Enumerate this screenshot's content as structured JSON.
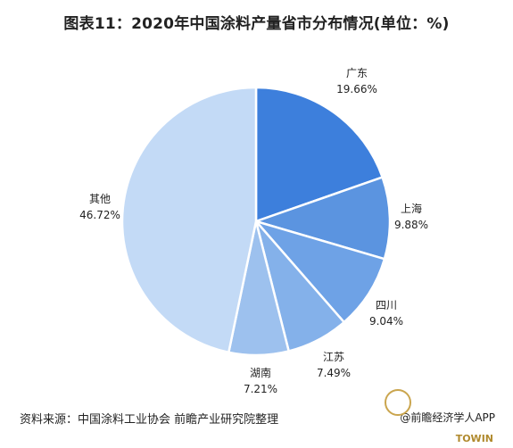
{
  "title": "图表11：2020年中国涂料产量省市分布情况(单位：%)",
  "footer": {
    "source": "资料来源：中国涂料工业协会 前瞻产业研究院整理",
    "right": "@前瞻经济学人APP",
    "brand": "TOWIN"
  },
  "chart_data": {
    "type": "pie",
    "title": "图表11：2020年中国涂料产量省市分布情况(单位：%)",
    "unit": "%",
    "start_angle_deg": 0,
    "direction": "clockwise",
    "slices": [
      {
        "label": "广东",
        "value": 19.66,
        "display": "19.66%",
        "color": "#3d7fdc"
      },
      {
        "label": "上海",
        "value": 9.88,
        "display": "9.88%",
        "color": "#5b94e0"
      },
      {
        "label": "四川",
        "value": 9.04,
        "display": "9.04%",
        "color": "#6ea2e6"
      },
      {
        "label": "江苏",
        "value": 7.49,
        "display": "7.49%",
        "color": "#84b1ea"
      },
      {
        "label": "湖南",
        "value": 7.21,
        "display": "7.21%",
        "color": "#9dc1ee"
      },
      {
        "label": "其他",
        "value": 46.72,
        "display": "46.72%",
        "color": "#c3daf6"
      }
    ]
  }
}
